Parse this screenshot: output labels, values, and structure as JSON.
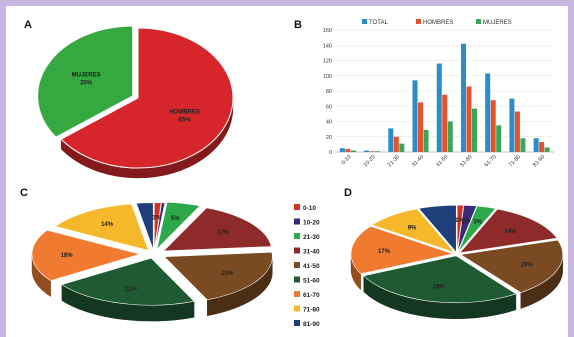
{
  "colors": {
    "background": "#c8b6e2",
    "panel": "#ffffff"
  },
  "panels": {
    "a": "A",
    "b": "B",
    "c": "C",
    "d": "D"
  },
  "chart_data": [
    {
      "panel": "A",
      "type": "pie",
      "slices": [
        {
          "label": "MUJERES",
          "pct_label": "35%",
          "value": 35,
          "color": "#35a840"
        },
        {
          "label": "HOMBRES",
          "pct_label": "65%",
          "value": 65,
          "color": "#d6262b"
        }
      ]
    },
    {
      "panel": "B",
      "type": "bar",
      "categories": [
        "0-10",
        "10-20",
        "21-30",
        "31-40",
        "41-50",
        "51-60",
        "61-70",
        "71-80",
        "81-90"
      ],
      "ylim": [
        0,
        160
      ],
      "yticks": [
        0,
        20,
        40,
        60,
        80,
        100,
        120,
        140,
        160
      ],
      "grid": true,
      "legend_position": "top",
      "series": [
        {
          "name": "TOTAL",
          "color": "#2b8cc8",
          "values": [
            5,
            2,
            31,
            94,
            116,
            142,
            103,
            70,
            18
          ]
        },
        {
          "name": "HOMBRES",
          "color": "#e5522e",
          "values": [
            4,
            1,
            20,
            65,
            75,
            86,
            68,
            53,
            13
          ]
        },
        {
          "name": "MUJERES",
          "color": "#3aa65a",
          "values": [
            2,
            1,
            11,
            29,
            40,
            57,
            35,
            18,
            6
          ]
        }
      ]
    },
    {
      "panel": "C",
      "type": "pie",
      "legend": {
        "labels": [
          "0-10",
          "10-20",
          "21-30",
          "31-40",
          "41-50",
          "51-60",
          "61-70",
          "71-80",
          "81-90"
        ],
        "colors": [
          "#d93024",
          "#3a2a7a",
          "#2da84a",
          "#8e2a2a",
          "#7a4a22",
          "#1f5a32",
          "#f07a30",
          "#f4b82a",
          "#1f3f7a"
        ]
      },
      "slices": [
        {
          "label": "1%",
          "value": 1,
          "color": "#d93024"
        },
        {
          "label": "",
          "value": 0.5,
          "color": "#3a2a7a"
        },
        {
          "label": "5%",
          "value": 5,
          "color": "#2da84a"
        },
        {
          "label": "17%",
          "value": 17,
          "color": "#8e2a2a"
        },
        {
          "label": "20%",
          "value": 20,
          "color": "#7a4a22"
        },
        {
          "label": "22%",
          "value": 22,
          "color": "#1f5a32"
        },
        {
          "label": "18%",
          "value": 18,
          "color": "#f07a30"
        },
        {
          "label": "14%",
          "value": 14,
          "color": "#f4b82a"
        },
        {
          "label": "",
          "value": 2.5,
          "color": "#1f3f7a"
        }
      ]
    },
    {
      "panel": "D",
      "type": "pie",
      "slices": [
        {
          "label": "1%",
          "value": 1,
          "color": "#d93024"
        },
        {
          "label": "2%",
          "value": 2,
          "color": "#3a2a7a"
        },
        {
          "label": "3%",
          "value": 3,
          "color": "#2da84a"
        },
        {
          "label": "14%",
          "value": 14,
          "color": "#8e2a2a"
        },
        {
          "label": "20%",
          "value": 20,
          "color": "#7a4a22"
        },
        {
          "label": "28%",
          "value": 28,
          "color": "#1f5a32"
        },
        {
          "label": "17%",
          "value": 17,
          "color": "#f07a30"
        },
        {
          "label": "9%",
          "value": 9,
          "color": "#f4b82a"
        },
        {
          "label": "",
          "value": 6,
          "color": "#1f3f7a"
        }
      ]
    }
  ]
}
